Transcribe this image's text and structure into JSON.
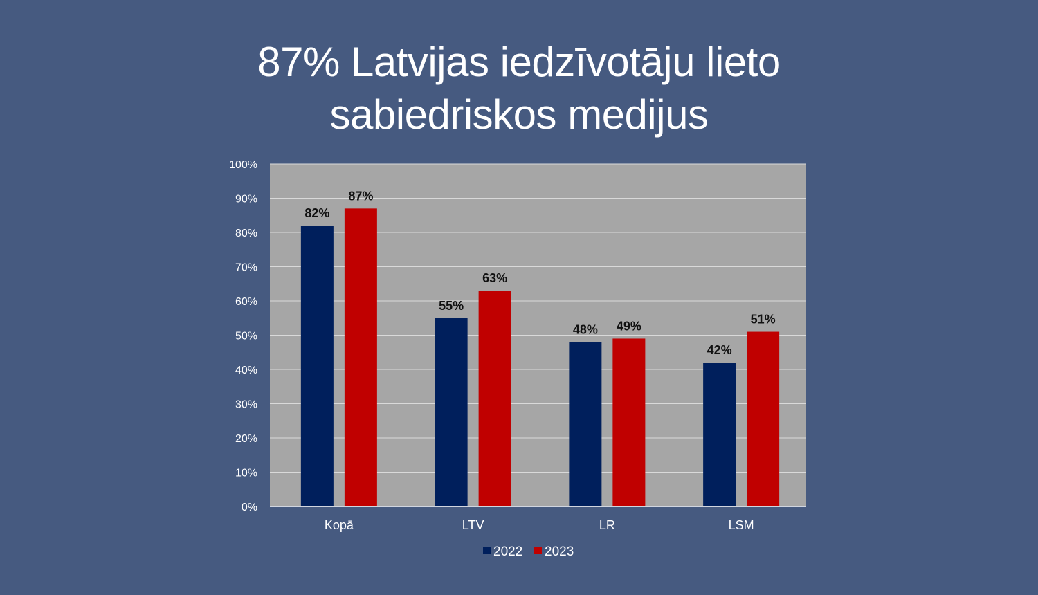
{
  "title_lines": [
    "87% Latvijas iedzīvotāju lieto",
    "sabiedriskos medijus"
  ],
  "chart_data": {
    "type": "bar",
    "title": "87% Latvijas iedzīvotāju lieto sabiedriskos medijus",
    "categories": [
      "Kopā",
      "LTV",
      "LR",
      "LSM"
    ],
    "series": [
      {
        "name": "2022",
        "color": "#001f5c",
        "values": [
          82,
          55,
          48,
          42
        ],
        "labels": [
          "82%",
          "55%",
          "48%",
          "42%"
        ]
      },
      {
        "name": "2023",
        "color": "#c00000",
        "values": [
          87,
          63,
          49,
          51
        ],
        "labels": [
          "87%",
          "63%",
          "49%",
          "51%"
        ]
      }
    ],
    "ylim": [
      0,
      100
    ],
    "yticks": [
      0,
      10,
      20,
      30,
      40,
      50,
      60,
      70,
      80,
      90,
      100
    ],
    "ytick_labels": [
      "0%",
      "10%",
      "20%",
      "30%",
      "40%",
      "50%",
      "60%",
      "70%",
      "80%",
      "90%",
      "100%"
    ],
    "xlabel": "",
    "ylabel": "",
    "grid": true,
    "legend": "bottom",
    "plot_background": "#a6a6a6",
    "gridline_color": "#d9d9d9"
  }
}
